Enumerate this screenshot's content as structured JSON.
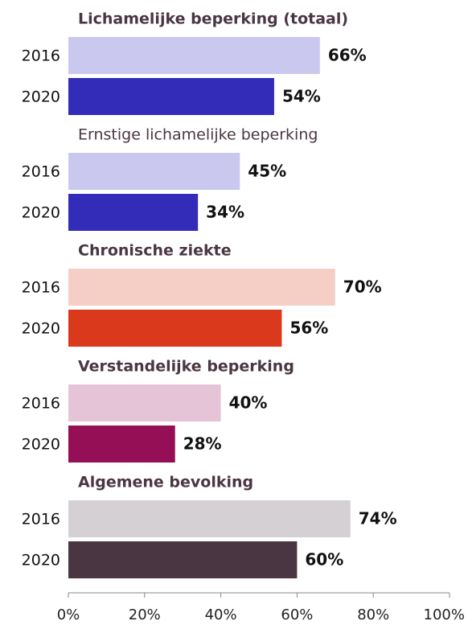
{
  "chart_data": {
    "type": "bar",
    "orientation": "horizontal",
    "groups": [
      {
        "name": "Lichamelijke beperking (totaal)",
        "title_bold": true,
        "categories": [
          "2016",
          "2020"
        ],
        "values": [
          66,
          54
        ],
        "value_labels": [
          "66%",
          "54%"
        ],
        "colors": [
          "#cbc8f0",
          "#332cb9"
        ]
      },
      {
        "name": "Ernstige lichamelijke beperking",
        "title_bold": false,
        "categories": [
          "2016",
          "2020"
        ],
        "values": [
          45,
          34
        ],
        "value_labels": [
          "45%",
          "34%"
        ],
        "colors": [
          "#cbc8f0",
          "#332cb9"
        ]
      },
      {
        "name": "Chronische ziekte",
        "title_bold": true,
        "categories": [
          "2016",
          "2020"
        ],
        "values": [
          70,
          56
        ],
        "value_labels": [
          "70%",
          "56%"
        ],
        "colors": [
          "#f5cec5",
          "#da3a1b"
        ]
      },
      {
        "name": "Verstandelijke beperking",
        "title_bold": true,
        "categories": [
          "2016",
          "2020"
        ],
        "values": [
          40,
          28
        ],
        "value_labels": [
          "40%",
          "28%"
        ],
        "colors": [
          "#e6c4d7",
          "#940f55"
        ]
      },
      {
        "name": "Algemene bevolking",
        "title_bold": true,
        "categories": [
          "2016",
          "2020"
        ],
        "values": [
          74,
          60
        ],
        "value_labels": [
          "74%",
          "60%"
        ],
        "colors": [
          "#d4d0d3",
          "#4a3642"
        ]
      }
    ],
    "xlim": [
      0,
      100
    ],
    "xticks": [
      {
        "value": 0,
        "label": "0%"
      },
      {
        "value": 20,
        "label": "20%"
      },
      {
        "value": 40,
        "label": "40%"
      },
      {
        "value": 60,
        "label": "60%"
      },
      {
        "value": 80,
        "label": "80%"
      },
      {
        "value": 100,
        "label": "100%"
      }
    ],
    "grid": false
  }
}
